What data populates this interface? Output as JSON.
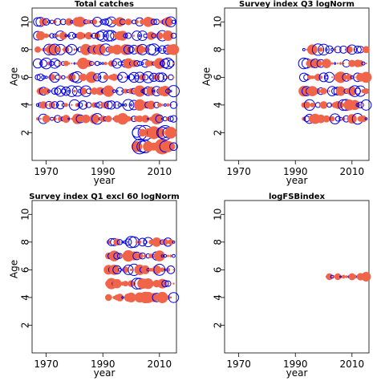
{
  "chart_data": [
    {
      "type": "scatter",
      "title": "Total catches",
      "xlabel": "year",
      "ylabel": "Age",
      "xlim": [
        1965,
        2016
      ],
      "ylim": [
        0,
        11
      ],
      "xticks": [
        1970,
        1990,
        2010
      ],
      "yticks": [
        2,
        4,
        6,
        8,
        10
      ],
      "years": [
        1967,
        2015
      ],
      "ages": [
        3,
        10
      ],
      "young_ages": [
        1,
        2
      ],
      "young_years": [
        2002,
        2015
      ],
      "seed": 11,
      "pos_color": "#f0654a",
      "neg_color": "#0000ee"
    },
    {
      "type": "scatter",
      "title": "Survey index Q3 logNorm",
      "xlabel": "year",
      "ylabel": "Age",
      "xlim": [
        1965,
        2016
      ],
      "ylim": [
        0,
        11
      ],
      "xticks": [
        1970,
        1990,
        2010
      ],
      "yticks": [
        2,
        4,
        6,
        8,
        10
      ],
      "years": [
        1993,
        2015
      ],
      "ages": [
        3,
        8
      ],
      "seed": 23,
      "pos_color": "#f0654a",
      "neg_color": "#0000ee"
    },
    {
      "type": "scatter",
      "title": "Survey index Q1 excl 60 logNorm",
      "xlabel": "year",
      "ylabel": "Age",
      "xlim": [
        1965,
        2016
      ],
      "ylim": [
        0,
        11
      ],
      "xticks": [
        1970,
        1990,
        2010
      ],
      "yticks": [
        2,
        4,
        6,
        8,
        10
      ],
      "years": [
        1992,
        2015
      ],
      "ages": [
        4,
        8
      ],
      "seed": 37,
      "pos_color": "#f0654a",
      "neg_color": "#0000ee"
    },
    {
      "type": "scatter",
      "title": "logFSBindex",
      "xlabel": "year",
      "ylabel": "",
      "xlim": [
        1965,
        2016
      ],
      "ylim": [
        0,
        11
      ],
      "xticks": [
        1970,
        1990,
        2010
      ],
      "yticks": [
        2,
        4,
        6,
        8,
        10
      ],
      "years": [
        2001,
        2015
      ],
      "ages": [
        5.5,
        5.5
      ],
      "seed": 53,
      "pos_color": "#f0654a",
      "neg_color": "#0000ee"
    }
  ]
}
